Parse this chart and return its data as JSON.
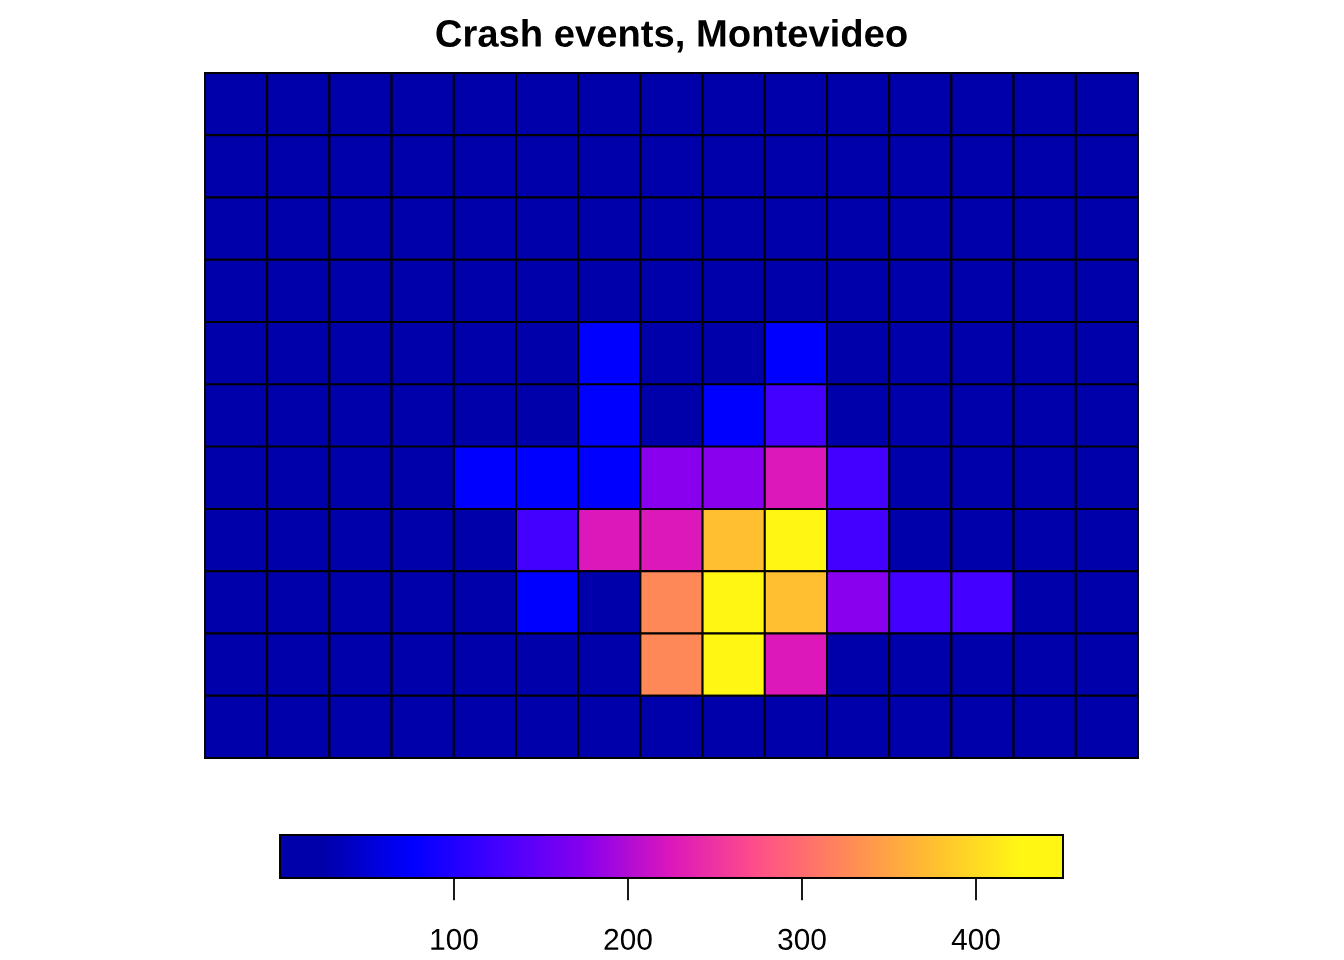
{
  "chart_data": {
    "type": "heatmap",
    "title": "Crash events, Montevideo",
    "categories": [
      null,
      null,
      null,
      null,
      null,
      null,
      null,
      null,
      null,
      null,
      null,
      null,
      null,
      null,
      null
    ],
    "y_categories": [
      null,
      null,
      null,
      null,
      null,
      null,
      null,
      null,
      null,
      null,
      null
    ],
    "cells": [
      [
        25,
        25,
        25,
        25,
        25,
        25,
        25,
        25,
        25,
        25,
        25,
        25,
        25,
        25,
        25
      ],
      [
        25,
        25,
        25,
        25,
        25,
        25,
        25,
        25,
        25,
        25,
        25,
        25,
        25,
        25,
        25
      ],
      [
        25,
        25,
        25,
        25,
        25,
        25,
        25,
        25,
        25,
        25,
        25,
        25,
        25,
        25,
        25
      ],
      [
        25,
        25,
        25,
        25,
        25,
        25,
        25,
        25,
        25,
        25,
        25,
        25,
        25,
        25,
        25
      ],
      [
        25,
        25,
        25,
        25,
        25,
        25,
        75,
        25,
        25,
        75,
        25,
        25,
        25,
        25,
        25
      ],
      [
        25,
        25,
        25,
        25,
        25,
        25,
        75,
        25,
        75,
        125,
        25,
        25,
        25,
        25,
        25
      ],
      [
        25,
        25,
        25,
        25,
        75,
        75,
        75,
        175,
        175,
        225,
        125,
        25,
        25,
        25,
        25
      ],
      [
        25,
        25,
        25,
        25,
        25,
        125,
        225,
        225,
        375,
        425,
        125,
        25,
        25,
        25,
        25
      ],
      [
        25,
        25,
        25,
        25,
        25,
        75,
        25,
        325,
        425,
        375,
        175,
        125,
        125,
        25,
        25
      ],
      [
        25,
        25,
        25,
        25,
        25,
        25,
        25,
        325,
        425,
        225,
        25,
        25,
        25,
        25,
        25
      ],
      [
        25,
        25,
        25,
        25,
        25,
        25,
        25,
        25,
        25,
        25,
        25,
        25,
        25,
        25,
        25
      ]
    ],
    "colors": [
      "#0000aa",
      "#0000ff",
      "#4400ff",
      "#8800ee",
      "#dd18bb",
      "#ff5088",
      "#ff8858",
      "#ffbf30",
      "#fff614"
    ],
    "clim": [
      0,
      450
    ],
    "cticks": [
      100,
      200,
      300,
      400
    ]
  }
}
